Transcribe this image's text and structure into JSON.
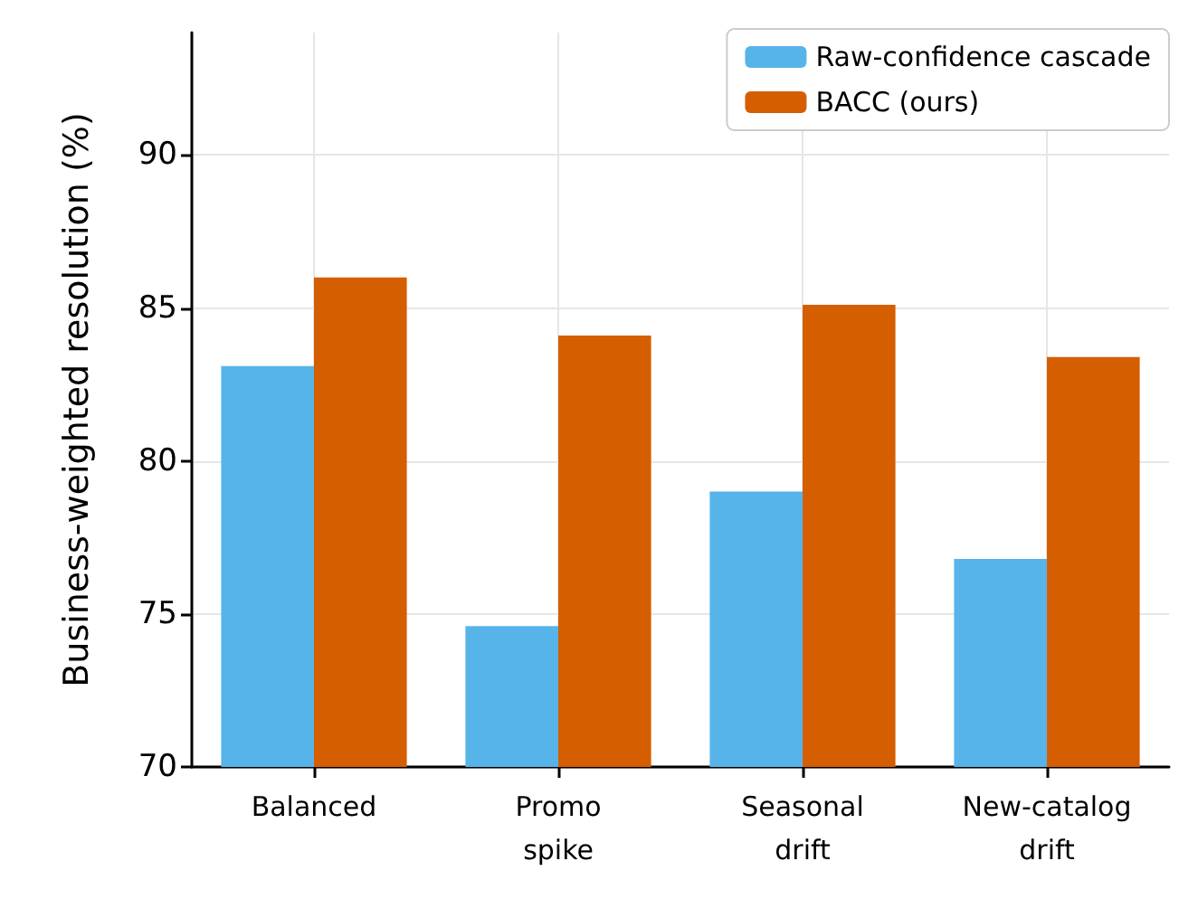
{
  "chart_data": {
    "type": "bar",
    "ylabel": "Business-weighted resolution (%)",
    "categories": [
      "Balanced",
      "Promo\nspike",
      "Seasonal\ndrift",
      "New-catalog\ndrift"
    ],
    "series": [
      {
        "name": "Raw-confidence cascade",
        "color": "#56b4e9",
        "values": [
          83.1,
          74.6,
          79.0,
          76.8
        ]
      },
      {
        "name": "BACC (ours)",
        "color": "#d55e00",
        "values": [
          86.0,
          84.1,
          85.1,
          83.4
        ]
      }
    ],
    "ylim": [
      70,
      94
    ],
    "yticks": [
      70,
      75,
      80,
      85,
      90
    ],
    "grid": true,
    "legend": "top right"
  }
}
